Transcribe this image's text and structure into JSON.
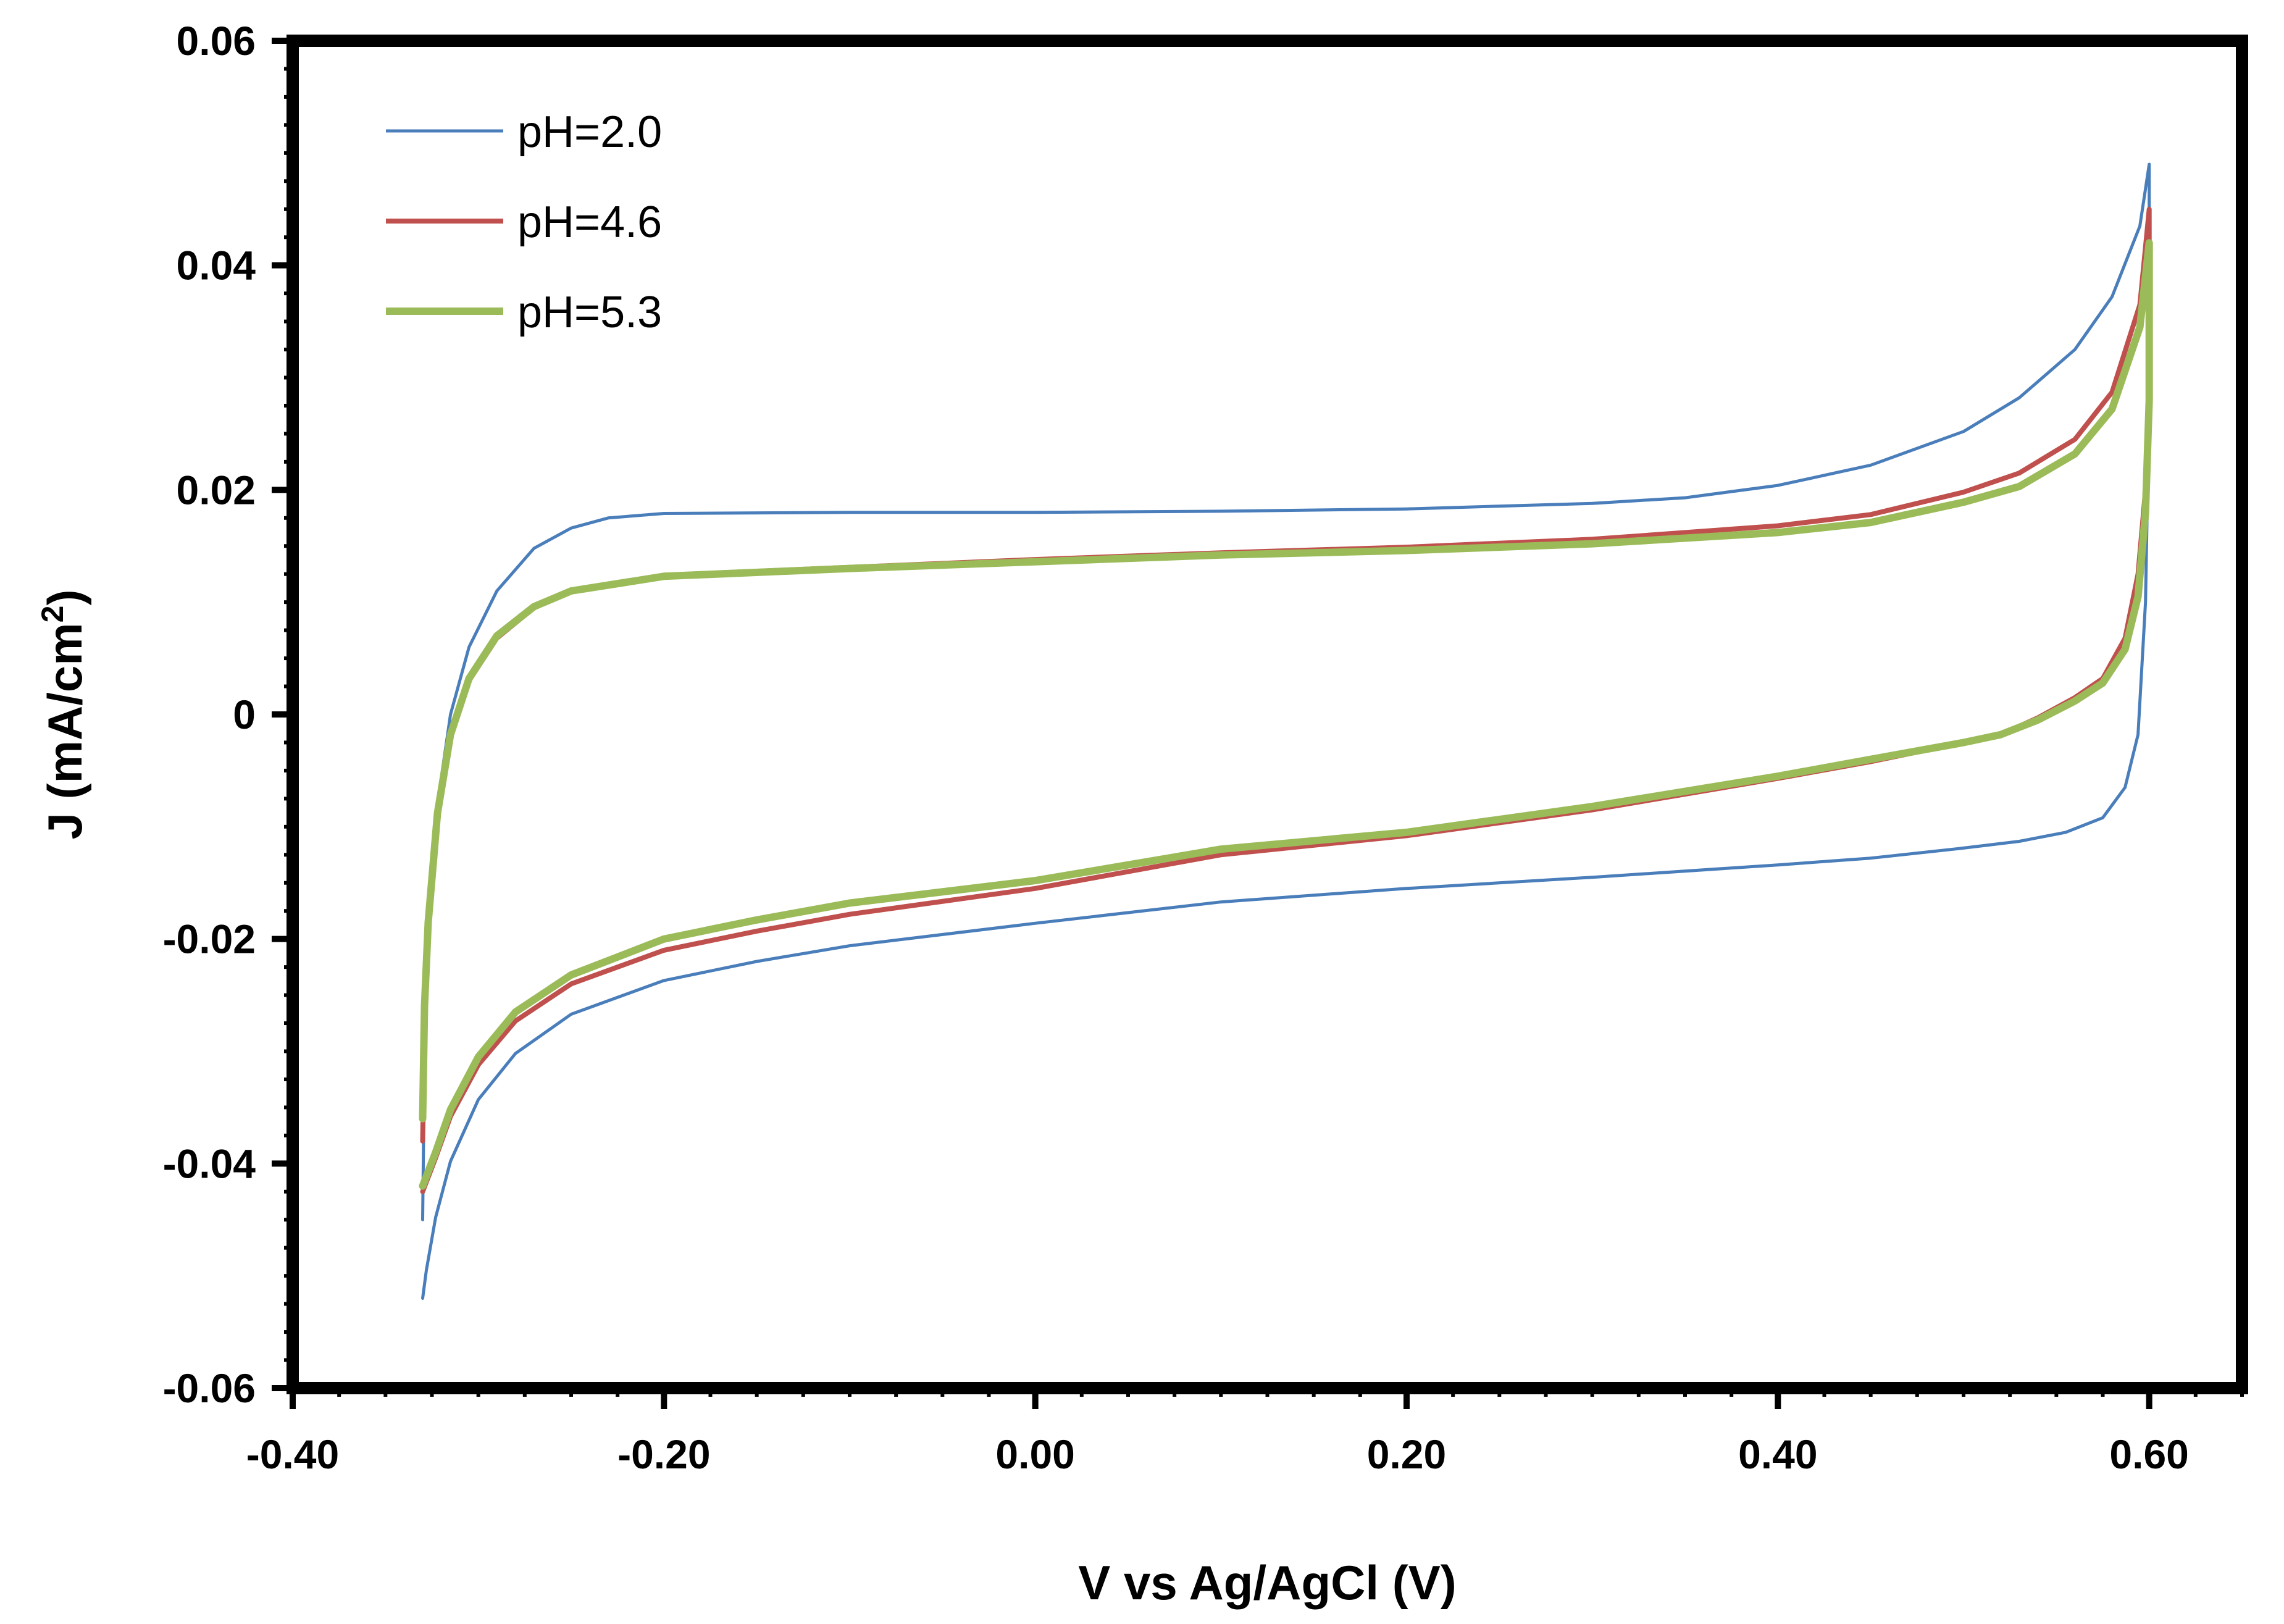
{
  "chart_data": {
    "type": "line",
    "title": "",
    "xlabel": "V vs Ag/AgCl (V)",
    "ylabel_main": "J (mA/cm",
    "ylabel_sup": "2",
    "ylabel_close": ")",
    "xlim": [
      -0.4,
      0.65
    ],
    "ylim": [
      -0.06,
      0.06
    ],
    "x_ticks": [
      {
        "value": -0.4,
        "label": "-0.40"
      },
      {
        "value": -0.2,
        "label": "-0.20"
      },
      {
        "value": 0.0,
        "label": "0.00"
      },
      {
        "value": 0.2,
        "label": "0.20"
      },
      {
        "value": 0.4,
        "label": "0.40"
      },
      {
        "value": 0.6,
        "label": "0.60"
      }
    ],
    "y_ticks": [
      {
        "value": -0.06,
        "label": "-0.06"
      },
      {
        "value": -0.04,
        "label": "-0.04"
      },
      {
        "value": -0.02,
        "label": "-0.02"
      },
      {
        "value": 0.0,
        "label": "0"
      },
      {
        "value": 0.02,
        "label": "0.02"
      },
      {
        "value": 0.04,
        "label": "0.04"
      },
      {
        "value": 0.06,
        "label": "0.06"
      }
    ],
    "legend_position": "top-left",
    "grid": false,
    "series": [
      {
        "name": "pH=2.0",
        "color": "#4a7ebb",
        "width": 5,
        "x": [
          -0.33,
          -0.329,
          -0.327,
          -0.322,
          -0.315,
          -0.305,
          -0.29,
          -0.27,
          -0.25,
          -0.23,
          -0.2,
          -0.1,
          0.0,
          0.1,
          0.2,
          0.3,
          0.35,
          0.4,
          0.45,
          0.5,
          0.53,
          0.56,
          0.58,
          0.595,
          0.6,
          0.6,
          0.598,
          0.594,
          0.587,
          0.575,
          0.555,
          0.53,
          0.5,
          0.45,
          0.4,
          0.3,
          0.2,
          0.1,
          0.0,
          -0.1,
          -0.15,
          -0.2,
          -0.25,
          -0.28,
          -0.3,
          -0.315,
          -0.323,
          -0.328,
          -0.33
        ],
        "y": [
          -0.045,
          -0.03,
          -0.02,
          -0.008,
          0.0,
          0.006,
          0.011,
          0.0148,
          0.0166,
          0.0175,
          0.0179,
          0.018,
          0.018,
          0.0181,
          0.0183,
          0.0188,
          0.0193,
          0.0204,
          0.0222,
          0.0252,
          0.0282,
          0.0325,
          0.0372,
          0.0435,
          0.049,
          0.028,
          0.01,
          -0.0018,
          -0.0065,
          -0.0092,
          -0.0105,
          -0.0113,
          -0.0119,
          -0.0128,
          -0.0134,
          -0.0145,
          -0.0155,
          -0.0167,
          -0.0186,
          -0.0206,
          -0.022,
          -0.0237,
          -0.0267,
          -0.0302,
          -0.0343,
          -0.0398,
          -0.0448,
          -0.0495,
          -0.052
        ]
      },
      {
        "name": "pH=4.6",
        "color": "#c0504d",
        "width": 8,
        "x": [
          -0.33,
          -0.329,
          -0.327,
          -0.322,
          -0.315,
          -0.305,
          -0.29,
          -0.27,
          -0.25,
          -0.2,
          -0.1,
          0.0,
          0.1,
          0.2,
          0.3,
          0.4,
          0.45,
          0.5,
          0.53,
          0.56,
          0.58,
          0.595,
          0.6,
          0.6,
          0.598,
          0.594,
          0.587,
          0.575,
          0.56,
          0.54,
          0.52,
          0.5,
          0.45,
          0.4,
          0.3,
          0.2,
          0.1,
          0.0,
          -0.1,
          -0.15,
          -0.2,
          -0.25,
          -0.28,
          -0.3,
          -0.315,
          -0.323,
          -0.33
        ],
        "y": [
          -0.038,
          -0.027,
          -0.019,
          -0.009,
          -0.002,
          0.003,
          0.0068,
          0.0095,
          0.011,
          0.0124,
          0.0131,
          0.0138,
          0.0144,
          0.0149,
          0.0156,
          0.0168,
          0.0178,
          0.0198,
          0.0215,
          0.0245,
          0.0287,
          0.0365,
          0.045,
          0.03,
          0.02,
          0.0125,
          0.0068,
          0.0032,
          0.0015,
          -0.0003,
          -0.0018,
          -0.0025,
          -0.0042,
          -0.0057,
          -0.0085,
          -0.0108,
          -0.0125,
          -0.0155,
          -0.0178,
          -0.0193,
          -0.021,
          -0.024,
          -0.0273,
          -0.0312,
          -0.0358,
          -0.0395,
          -0.0425
        ]
      },
      {
        "name": "pH=5.3",
        "color": "#9bbb59",
        "width": 12,
        "x": [
          -0.33,
          -0.329,
          -0.327,
          -0.322,
          -0.315,
          -0.305,
          -0.29,
          -0.27,
          -0.25,
          -0.2,
          -0.1,
          0.0,
          0.1,
          0.2,
          0.3,
          0.4,
          0.45,
          0.5,
          0.53,
          0.56,
          0.58,
          0.595,
          0.6,
          0.6,
          0.598,
          0.594,
          0.587,
          0.575,
          0.56,
          0.54,
          0.52,
          0.5,
          0.45,
          0.4,
          0.3,
          0.2,
          0.1,
          0.0,
          -0.1,
          -0.15,
          -0.2,
          -0.25,
          -0.28,
          -0.3,
          -0.315,
          -0.323,
          -0.33
        ],
        "y": [
          -0.036,
          -0.026,
          -0.0185,
          -0.0088,
          -0.0018,
          0.0032,
          0.007,
          0.0096,
          0.011,
          0.0123,
          0.013,
          0.0136,
          0.0142,
          0.0146,
          0.0152,
          0.0162,
          0.0171,
          0.0189,
          0.0203,
          0.0232,
          0.0272,
          0.0345,
          0.042,
          0.028,
          0.018,
          0.0105,
          0.0058,
          0.0028,
          0.0012,
          -0.0005,
          -0.0018,
          -0.0025,
          -0.004,
          -0.0055,
          -0.0082,
          -0.0105,
          -0.012,
          -0.0148,
          -0.0168,
          -0.0183,
          -0.02,
          -0.0232,
          -0.0265,
          -0.0305,
          -0.0352,
          -0.039,
          -0.042
        ]
      }
    ]
  }
}
